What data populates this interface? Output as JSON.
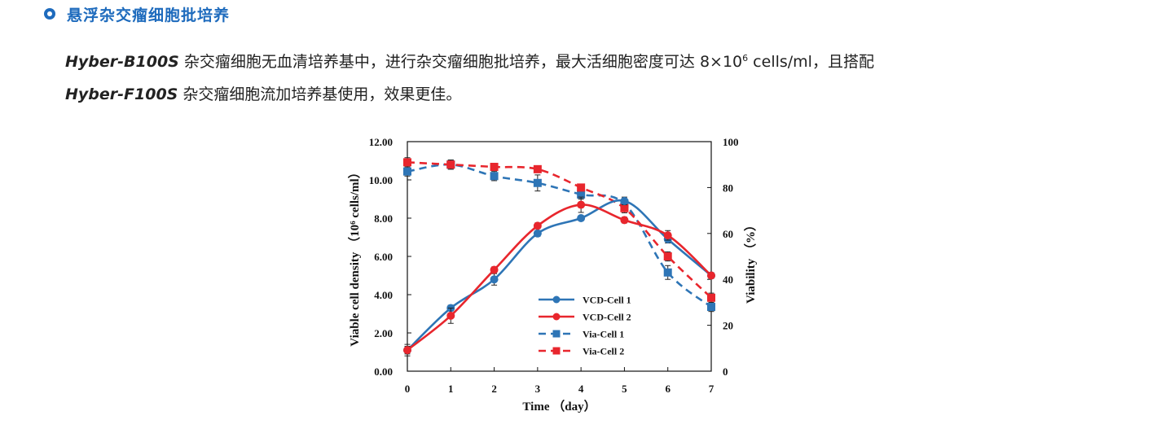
{
  "section": {
    "title": "悬浮杂交瘤细胞批培养"
  },
  "paragraph": {
    "product1": "Hyber-B100S",
    "text1": " 杂交瘤细胞无血清培养基中，进行杂交瘤细胞批培养，最大活细胞密度可达 8×10",
    "sup": "6",
    "text2": " cells/ml，且搭配",
    "product2": "Hyber-F100S",
    "text3": " 杂交瘤细胞流加培养基使用，效果更佳。"
  },
  "colors": {
    "accent": "#1e6bbd",
    "blue_series": "#2e75b6",
    "red_series": "#e8262d"
  },
  "chart_data": {
    "type": "line",
    "title": "",
    "xlabel": "Time （day）",
    "ylabel_left": "Viable cell density （10⁶ cells/ml）",
    "ylabel_right": "Viability （%）",
    "x": [
      0,
      1,
      2,
      3,
      4,
      5,
      6,
      7
    ],
    "x_ticks": [
      "0",
      "1",
      "2",
      "3",
      "4",
      "5",
      "6",
      "7"
    ],
    "y_left_ticks": [
      "0.00",
      "2.00",
      "4.00",
      "6.00",
      "8.00",
      "10.00",
      "12.00"
    ],
    "y_right_ticks": [
      "0",
      "20",
      "40",
      "60",
      "80",
      "100"
    ],
    "ylim_left": [
      0,
      12
    ],
    "ylim_right": [
      0,
      100
    ],
    "grid": false,
    "legend_position": "lower-center",
    "series": [
      {
        "name": "VCD-Cell 1",
        "axis": "left",
        "style": "solid",
        "marker": "circle",
        "color": "#2e75b6",
        "values": [
          1.1,
          3.3,
          4.8,
          7.2,
          8.0,
          8.9,
          6.9,
          5.0
        ],
        "err": [
          0.3,
          0.15,
          0.3,
          0.15,
          0.12,
          0.2,
          0.2,
          0.15
        ]
      },
      {
        "name": "VCD-Cell 2",
        "axis": "left",
        "style": "solid",
        "marker": "circle",
        "color": "#e8262d",
        "values": [
          1.1,
          2.9,
          5.3,
          7.6,
          8.7,
          7.9,
          7.1,
          5.0
        ],
        "err": [
          0.2,
          0.4,
          0.15,
          0.15,
          0.4,
          0.15,
          0.25,
          0.15
        ]
      },
      {
        "name": "Via-Cell 1",
        "axis": "right",
        "style": "dashed",
        "marker": "square",
        "color": "#2e75b6",
        "values": [
          87,
          90,
          85,
          82,
          77,
          73,
          43,
          28
        ],
        "err": [
          2,
          2,
          2,
          3.5,
          2,
          2,
          3,
          2
        ]
      },
      {
        "name": "Via-Cell 2",
        "axis": "right",
        "style": "dashed",
        "marker": "square",
        "color": "#e8262d",
        "values": [
          91,
          90,
          89,
          88,
          80,
          71,
          50,
          32
        ],
        "err": [
          2,
          2,
          1.5,
          1.5,
          1.5,
          2,
          2,
          2
        ]
      }
    ]
  }
}
